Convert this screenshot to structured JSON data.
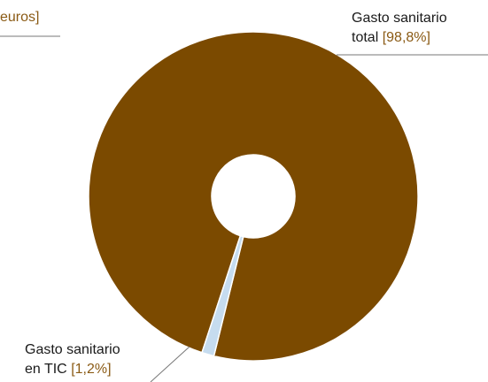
{
  "corner_label": "euros]",
  "chart_data": {
    "type": "pie",
    "style": "donut",
    "slices": [
      {
        "label_line1": "Gasto sanitario",
        "label_line2": "total",
        "percent_text": "[98,8%]",
        "value": 98.8,
        "color": "#7b4a00"
      },
      {
        "label_line1": "Gasto sanitario",
        "label_line2": "en TIC",
        "percent_text": "[1,2%]",
        "value": 1.2,
        "color": "#c6dcef"
      }
    ],
    "colors": {
      "label_text": "#1a1a1a",
      "percent_text": "#8a5a14",
      "leader_line": "#777777",
      "slice_border": "#ffffff"
    }
  }
}
